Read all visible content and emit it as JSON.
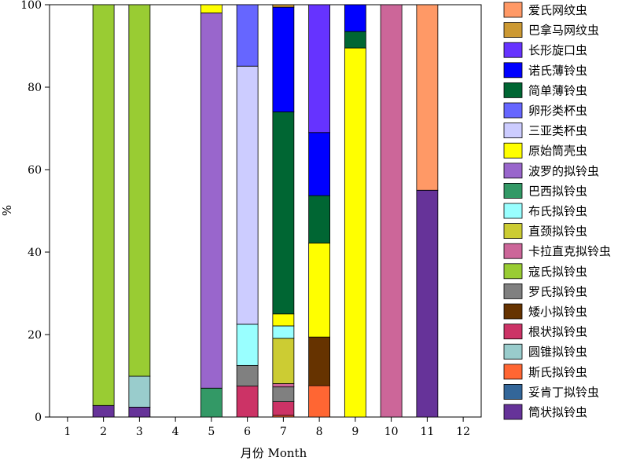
{
  "chart_data": {
    "type": "bar",
    "stacked": true,
    "title": "",
    "xlabel": "月份 Month",
    "ylabel": "%",
    "ylim": [
      0,
      100
    ],
    "yticks": [
      0,
      20,
      40,
      60,
      80,
      100
    ],
    "categories": [
      "1",
      "2",
      "3",
      "4",
      "5",
      "6",
      "7",
      "8",
      "9",
      "10",
      "11",
      "12"
    ],
    "legend_position": "right",
    "series": [
      {
        "name": "筒状拟铃虫",
        "color": "#663399",
        "values": [
          0,
          2.8,
          2.4,
          0,
          0,
          0,
          0,
          0,
          0,
          0,
          55,
          0
        ]
      },
      {
        "name": "妥肯丁拟铃虫",
        "color": "#336699",
        "values": [
          0,
          0,
          0,
          0,
          0,
          0,
          0,
          0,
          0,
          0,
          0,
          0
        ]
      },
      {
        "name": "斯氏拟铃虫",
        "color": "#ff6633",
        "values": [
          0,
          0,
          0,
          0,
          0,
          0,
          0.4,
          7.6,
          0,
          0,
          0,
          0
        ]
      },
      {
        "name": "圆锥拟铃虫",
        "color": "#99cccc",
        "values": [
          0,
          0,
          7.5,
          0,
          0,
          0,
          0,
          0,
          0,
          0,
          0,
          0
        ]
      },
      {
        "name": "根状拟铃虫",
        "color": "#cc3366",
        "values": [
          0,
          0,
          0,
          0,
          0,
          7.5,
          3.3,
          0,
          0,
          0,
          0,
          0
        ]
      },
      {
        "name": "矮小拟铃虫",
        "color": "#663300",
        "values": [
          0,
          0,
          0,
          0,
          0,
          0,
          0,
          11.8,
          0,
          0,
          0,
          0
        ]
      },
      {
        "name": "罗氏拟铃虫",
        "color": "#808080",
        "values": [
          0,
          0,
          0,
          0,
          0,
          5,
          3.6,
          0,
          0,
          0,
          0,
          0
        ]
      },
      {
        "name": "寇氏拟铃虫",
        "color": "#99cc33",
        "values": [
          0,
          97.2,
          90.1,
          0,
          0,
          0,
          0,
          0,
          0,
          0,
          0,
          0
        ]
      },
      {
        "name": "卡拉直克拟铃虫",
        "color": "#cc6699",
        "values": [
          0,
          0,
          0,
          0,
          0,
          0,
          0.8,
          0,
          0,
          100,
          0,
          0
        ]
      },
      {
        "name": "直颈拟铃虫",
        "color": "#cccc33",
        "values": [
          0,
          0,
          0,
          0,
          0,
          0,
          11,
          0,
          0,
          0,
          0,
          0
        ]
      },
      {
        "name": "布氏拟铃虫",
        "color": "#99ffff",
        "values": [
          0,
          0,
          0,
          0,
          0,
          10,
          3,
          0,
          0,
          0,
          0,
          0
        ]
      },
      {
        "name": "巴西拟铃虫",
        "color": "#339966",
        "values": [
          0,
          0,
          0,
          0,
          7,
          0,
          0,
          0,
          0,
          0,
          0,
          0
        ]
      },
      {
        "name": "波罗的拟铃虫",
        "color": "#9966cc",
        "values": [
          0,
          0,
          0,
          0,
          91,
          0,
          0,
          0,
          0,
          0,
          0,
          0
        ]
      },
      {
        "name": "原始筒壳虫",
        "color": "#ffff00",
        "values": [
          0,
          0,
          0,
          0,
          2,
          0,
          2.9,
          22.8,
          89.5,
          0,
          0,
          0
        ]
      },
      {
        "name": "三亚类杯虫",
        "color": "#ccccff",
        "values": [
          0,
          0,
          0,
          0,
          0,
          62.6,
          0,
          0,
          0,
          0,
          0,
          0
        ]
      },
      {
        "name": "卵形类杯虫",
        "color": "#6666ff",
        "values": [
          0,
          0,
          0,
          0,
          0,
          14.9,
          0,
          0,
          0,
          0,
          0,
          0
        ]
      },
      {
        "name": "简单薄铃虫",
        "color": "#006633",
        "values": [
          0,
          0,
          0,
          0,
          0,
          0,
          49,
          11.5,
          4,
          0,
          0,
          0
        ]
      },
      {
        "name": "诺氏薄铃虫",
        "color": "#0000ff",
        "values": [
          0,
          0,
          0,
          0,
          0,
          0,
          25.4,
          15.3,
          6.5,
          0,
          0,
          0
        ]
      },
      {
        "name": "长形旋口虫",
        "color": "#6633ff",
        "values": [
          0,
          0,
          0,
          0,
          0,
          0,
          0,
          31,
          0,
          0,
          0,
          0
        ]
      },
      {
        "name": "巴拿马网纹虫",
        "color": "#cc9933",
        "values": [
          0,
          0,
          0,
          0,
          0,
          0,
          0.6,
          0,
          0,
          0,
          0,
          0
        ]
      },
      {
        "name": "爱氏网纹虫",
        "color": "#ff9966",
        "values": [
          0,
          0,
          0,
          0,
          0,
          0,
          0,
          0,
          0,
          0,
          45,
          0
        ]
      }
    ]
  }
}
